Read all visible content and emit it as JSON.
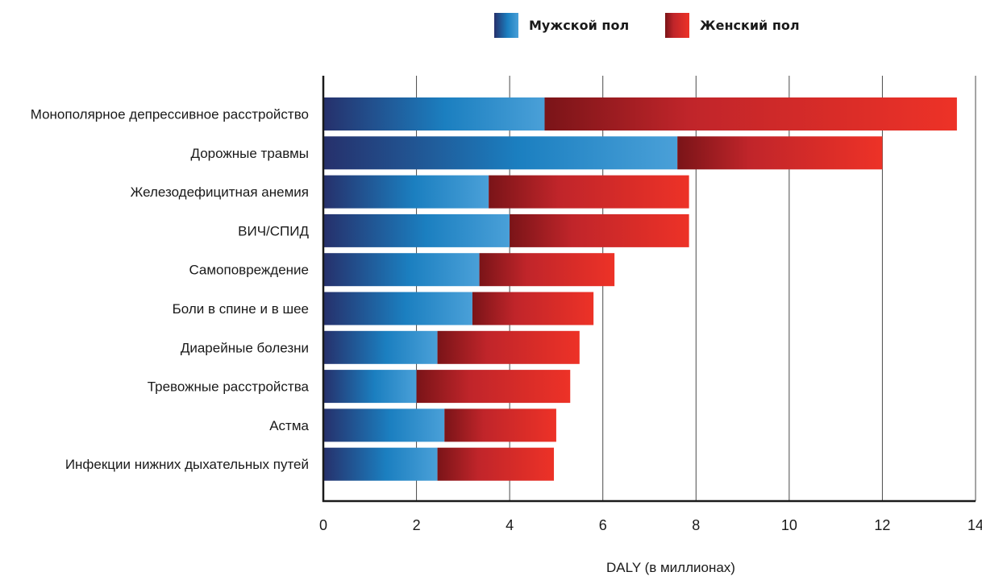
{
  "chart_data": {
    "type": "bar",
    "orientation": "horizontal",
    "stacked": true,
    "categories": [
      "Монополярное депрессивное расстройство",
      "Дорожные травмы",
      "Железодефицитная анемия",
      "ВИЧ/СПИД",
      "Самоповреждение",
      "Боли в спине и в шее",
      "Диарейные болезни",
      "Тревожные расстройства",
      "Астма",
      "Инфекции нижних дыхательных путей"
    ],
    "series": [
      {
        "name": "Мужской пол",
        "values": [
          4.75,
          7.6,
          3.55,
          4.0,
          3.35,
          3.2,
          2.45,
          2.0,
          2.6,
          2.45
        ]
      },
      {
        "name": "Женский пол",
        "values": [
          8.85,
          4.4,
          4.3,
          3.85,
          2.9,
          2.6,
          3.05,
          3.3,
          2.4,
          2.5
        ]
      }
    ],
    "xlabel": "DALY (в миллионах)",
    "ylabel": "",
    "xlim": [
      0,
      14
    ],
    "xticks": [
      0,
      2,
      4,
      6,
      8,
      10,
      12,
      14
    ],
    "grid": "vertical",
    "legend": "top-right",
    "colors": {
      "male_dark": "#26306b",
      "male_mid": "#1b7fc0",
      "male_light": "#4aa0d8",
      "female_dark": "#7a1418",
      "female_mid": "#c0252a",
      "female_light": "#ed3227"
    }
  }
}
